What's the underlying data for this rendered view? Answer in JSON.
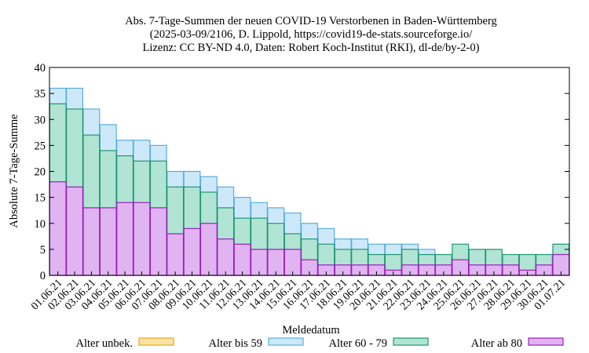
{
  "chart_data": {
    "type": "bar",
    "stacked": true,
    "title_lines": [
      "Abs. 7-Tage-Summen der neuen COVID-19 Verstorbenen in Baden-Württemberg",
      "(2025-03-09/2106, D. Lippold, https://covid19-de-stats.sourceforge.io/",
      "Lizenz: CC BY-ND 4.0, Daten: Robert Koch-Institut (RKI), dl-de/by-2-0)"
    ],
    "xlabel": "Meldedatum",
    "ylabel": "Absolute 7-Tage-Summe",
    "ylim": [
      0,
      40
    ],
    "yticks": [
      0,
      5,
      10,
      15,
      20,
      25,
      30,
      35,
      40
    ],
    "grid": false,
    "legend_position": "bottom",
    "categories": [
      "01.06.21",
      "02.06.21",
      "03.06.21",
      "04.06.21",
      "05.06.21",
      "06.06.21",
      "07.06.21",
      "08.06.21",
      "09.06.21",
      "10.06.21",
      "11.06.21",
      "12.06.21",
      "13.06.21",
      "14.06.21",
      "15.06.21",
      "16.06.21",
      "17.06.21",
      "18.06.21",
      "19.06.21",
      "20.06.21",
      "21.06.21",
      "22.06.21",
      "23.06.21",
      "24.06.21",
      "25.06.21",
      "26.06.21",
      "27.06.21",
      "28.06.21",
      "29.06.21",
      "30.06.21",
      "01.07.21"
    ],
    "series": [
      {
        "name": "Alter ab 80",
        "fill": "#e0b4f0",
        "stroke": "#9b1dc0",
        "values": [
          18,
          17,
          13,
          13,
          14,
          14,
          13,
          8,
          9,
          10,
          7,
          6,
          5,
          5,
          5,
          3,
          2,
          2,
          2,
          2,
          1,
          2,
          2,
          2,
          3,
          2,
          2,
          2,
          1,
          2,
          4
        ]
      },
      {
        "name": "Alter 60 - 79",
        "fill": "#b2e4d4",
        "stroke": "#1e9670",
        "values": [
          15,
          15,
          14,
          11,
          9,
          8,
          9,
          9,
          8,
          6,
          6,
          5,
          6,
          5,
          3,
          4,
          4,
          3,
          3,
          2,
          3,
          3,
          2,
          2,
          3,
          3,
          3,
          2,
          3,
          2,
          2
        ]
      },
      {
        "name": "Alter bis 59",
        "fill": "#cde9f9",
        "stroke": "#5aaee0",
        "values": [
          3,
          4,
          5,
          5,
          3,
          4,
          3,
          3,
          3,
          3,
          4,
          4,
          3,
          3,
          4,
          3,
          3,
          2,
          2,
          2,
          2,
          1,
          1,
          0,
          0,
          0,
          0,
          0,
          0,
          0,
          0
        ]
      },
      {
        "name": "Alter unbek.",
        "fill": "#fbe3a6",
        "stroke": "#e6a817",
        "values": [
          0,
          0,
          0,
          0,
          0,
          0,
          0,
          0,
          0,
          0,
          0,
          0,
          0,
          0,
          0,
          0,
          0,
          0,
          0,
          0,
          0,
          0,
          0,
          0,
          0,
          0,
          0,
          0,
          0,
          0,
          0
        ]
      }
    ],
    "legend_order": [
      "Alter unbek.",
      "Alter bis 59",
      "Alter 60 - 79",
      "Alter ab 80"
    ]
  }
}
